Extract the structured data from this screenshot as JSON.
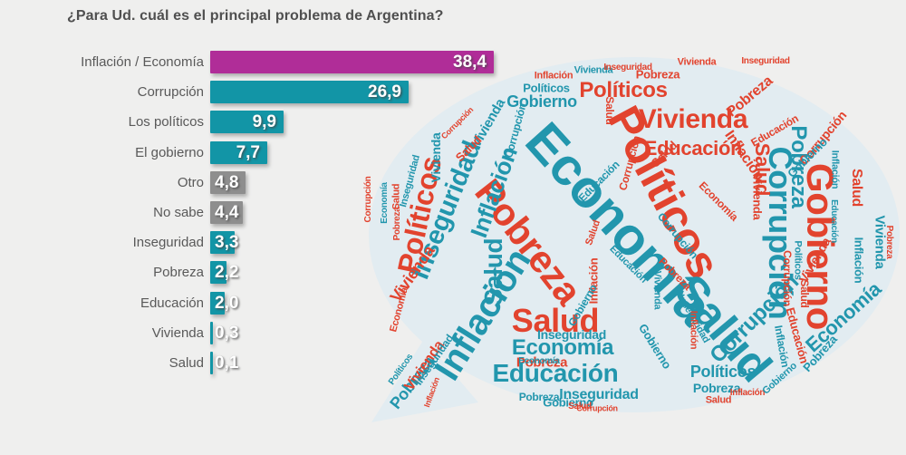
{
  "title": "¿Para Ud. cuál es el principal problema de Argentina?",
  "colors": {
    "background": "#efefee",
    "title_text": "#4f4f4f",
    "category_text": "#595959",
    "magenta": "#b02d98",
    "teal_bar": "#1295a6",
    "gray_bar": "#8e8e8e",
    "bubble_fill": "#e2ecf1",
    "cloud_teal": "#2296ad",
    "cloud_red": "#e2432e",
    "value_text": "#ffffff"
  },
  "chart_data": {
    "type": "bar",
    "orientation": "horizontal",
    "title": "¿Para Ud. cuál es el principal problema de Argentina?",
    "xlabel": "",
    "ylabel": "",
    "xlim": [
      0,
      40
    ],
    "grid": false,
    "legend": false,
    "categories": [
      "Inflación / Economía",
      "Corrupción",
      "Los políticos",
      "El gobierno",
      "Otro",
      "No sabe",
      "Inseguridad",
      "Pobreza",
      "Educación",
      "Vivienda",
      "Salud"
    ],
    "values": [
      38.4,
      26.9,
      9.9,
      7.7,
      4.8,
      4.4,
      3.3,
      2.2,
      2.0,
      0.3,
      0.1
    ],
    "value_labels": [
      "38,4",
      "26,9",
      "9,9",
      "7,7",
      "4,8",
      "4,4",
      "3,3",
      "2,2",
      "2,0",
      "0,3",
      "0,1"
    ],
    "bar_color_keys": [
      "magenta",
      "teal_bar",
      "teal_bar",
      "teal_bar",
      "gray_bar",
      "gray_bar",
      "teal_bar",
      "teal_bar",
      "teal_bar",
      "teal_bar",
      "teal_bar"
    ]
  },
  "word_cloud": {
    "shape": "speech-bubble",
    "palette": {
      "t": "#2296ad",
      "r": "#e2432e"
    },
    "words_format": [
      "text",
      "x",
      "y",
      "size",
      "color(t=teal,r=red)",
      "rotate_deg"
    ],
    "words": [
      [
        "Economía",
        290,
        195,
        58,
        "t",
        48
      ],
      [
        "Políticos",
        340,
        160,
        50,
        "r",
        62
      ],
      [
        "Salud",
        405,
        310,
        50,
        "t",
        50
      ],
      [
        "Pobreza",
        190,
        215,
        42,
        "r",
        52
      ],
      [
        "Inflación",
        140,
        295,
        40,
        "t",
        -58
      ],
      [
        "Gobierno",
        512,
        220,
        42,
        "r",
        90
      ],
      [
        "Corrupción",
        468,
        205,
        36,
        "t",
        90
      ],
      [
        "Políticos",
        70,
        185,
        32,
        "r",
        -78
      ],
      [
        "Inseguridad",
        100,
        180,
        29,
        "t",
        -68
      ],
      [
        "Salud",
        220,
        302,
        36,
        "r",
        0
      ],
      [
        "Vivienda",
        372,
        80,
        30,
        "r",
        0
      ],
      [
        "Educación",
        220,
        360,
        28,
        "t",
        0
      ],
      [
        "Inflación",
        152,
        160,
        26,
        "t",
        -70
      ],
      [
        "Salud",
        152,
        248,
        28,
        "t",
        -90
      ],
      [
        "Economía",
        228,
        332,
        24,
        "t",
        0
      ],
      [
        "Educación",
        372,
        112,
        22,
        "r",
        0
      ],
      [
        "Políticos",
        295,
        48,
        24,
        "r",
        0
      ],
      [
        "Corrupción",
        440,
        300,
        24,
        "t",
        -45
      ],
      [
        "Economía",
        538,
        298,
        22,
        "t",
        -42
      ],
      [
        "Pobreza",
        488,
        132,
        24,
        "t",
        90
      ],
      [
        "Salud",
        448,
        135,
        22,
        "r",
        90
      ],
      [
        "Gobierno",
        205,
        60,
        18,
        "t",
        0
      ],
      [
        "Vivienda",
        62,
        250,
        18,
        "r",
        -55
      ],
      [
        "Pobreza",
        62,
        370,
        18,
        "t",
        -52
      ],
      [
        "Inseguridad",
        268,
        384,
        16,
        "t",
        0
      ],
      [
        "Políticos",
        405,
        358,
        18,
        "t",
        0
      ],
      [
        "Vivienda",
        76,
        352,
        16,
        "r",
        -55
      ],
      [
        "Inflación",
        428,
        120,
        16,
        "r",
        55
      ],
      [
        "Pobreza",
        435,
        55,
        16,
        "r",
        -40
      ],
      [
        "Salud",
        552,
        155,
        16,
        "r",
        90
      ],
      [
        "Vivienda",
        578,
        215,
        15,
        "t",
        90
      ],
      [
        "Vivienda",
        146,
        84,
        15,
        "t",
        -60
      ],
      [
        "Pobreza",
        205,
        348,
        15,
        "r",
        0
      ],
      [
        "Inseguridad",
        238,
        317,
        14,
        "t",
        0
      ],
      [
        "Vivienda",
        506,
        235,
        14,
        "r",
        -60
      ],
      [
        "Corrupción",
        515,
        100,
        14,
        "r",
        -50
      ],
      [
        "Gobierno",
        498,
        122,
        13,
        "t",
        -45
      ],
      [
        "Inflación",
        555,
        235,
        13,
        "t",
        90
      ],
      [
        "Salud",
        124,
        112,
        13,
        "r",
        -45
      ],
      [
        "Políticos",
        210,
        45,
        13,
        "t",
        0
      ],
      [
        "Pobreza",
        333,
        30,
        13,
        "r",
        0
      ],
      [
        "Gobierno",
        234,
        392,
        13,
        "t",
        0
      ],
      [
        "Pobreza",
        512,
        338,
        13,
        "t",
        -48
      ],
      [
        "Educación",
        487,
        318,
        13,
        "r",
        75
      ],
      [
        "Vivienda",
        88,
        122,
        14,
        "t",
        -90
      ],
      [
        "Salud",
        495,
        272,
        12,
        "r",
        90
      ],
      [
        "Corrupción",
        476,
        255,
        12,
        "r",
        90
      ],
      [
        "Vivienda",
        443,
        165,
        13,
        "r",
        90
      ],
      [
        "Salud",
        340,
        118,
        13,
        "r",
        -45
      ],
      [
        "Corrupción",
        302,
        128,
        12,
        "r",
        -75
      ],
      [
        "Educación",
        268,
        148,
        12,
        "t",
        -45
      ],
      [
        "Pobreza",
        202,
        386,
        12,
        "t",
        0
      ],
      [
        "Inflación",
        218,
        32,
        11,
        "r",
        0
      ],
      [
        "Vivienda",
        262,
        26,
        11,
        "t",
        0
      ],
      [
        "Vivienda",
        376,
        17,
        11,
        "r",
        0
      ],
      [
        "Inseguridad",
        300,
        23,
        10,
        "r",
        0
      ],
      [
        "Inseguridad",
        452,
        16,
        10,
        "r",
        0
      ],
      [
        "Educación",
        462,
        92,
        12,
        "r",
        -30
      ],
      [
        "Inflación",
        528,
        135,
        11,
        "t",
        90
      ],
      [
        "Pobreza",
        588,
        215,
        10,
        "r",
        90
      ],
      [
        "Educación",
        527,
        192,
        10,
        "t",
        90
      ],
      [
        "Políticos",
        487,
        235,
        11,
        "t",
        90
      ],
      [
        "Inseguridad",
        60,
        148,
        11,
        "t",
        -75
      ],
      [
        "Salud",
        45,
        165,
        11,
        "r",
        -90
      ],
      [
        "Corrupción",
        14,
        168,
        10,
        "r",
        -90
      ],
      [
        "Economía",
        32,
        172,
        10,
        "t",
        -90
      ],
      [
        "Pobreza",
        46,
        195,
        10,
        "r",
        -90
      ],
      [
        "Economía",
        48,
        290,
        11,
        "r",
        -75
      ],
      [
        "Corrupción",
        176,
        92,
        12,
        "t",
        -75
      ],
      [
        "Salud",
        280,
        70,
        12,
        "r",
        90
      ],
      [
        "Corrupción",
        112,
        84,
        9,
        "r",
        -45
      ],
      [
        "Inseguridad",
        86,
        345,
        12,
        "t",
        -55
      ],
      [
        "Políticos",
        50,
        356,
        10,
        "t",
        -55
      ],
      [
        "Inflación",
        84,
        381,
        9,
        "r",
        -70
      ],
      [
        "Economía",
        202,
        347,
        10,
        "t",
        0
      ],
      [
        "Salud",
        247,
        397,
        10,
        "r",
        0
      ],
      [
        "Corrupción",
        266,
        399,
        9,
        "r",
        0
      ],
      [
        "Pobreza",
        398,
        376,
        14,
        "t",
        0
      ],
      [
        "Salud",
        400,
        390,
        11,
        "r",
        0
      ],
      [
        "Inflación",
        432,
        382,
        10,
        "r",
        0
      ],
      [
        "Gobierno",
        468,
        366,
        11,
        "t",
        -42
      ],
      [
        "Inflación",
        470,
        330,
        12,
        "t",
        80
      ],
      [
        "Inflación",
        262,
        258,
        13,
        "r",
        -90
      ],
      [
        "Gobierno",
        250,
        285,
        12,
        "t",
        -60
      ],
      [
        "Educación",
        300,
        240,
        11,
        "t",
        45
      ],
      [
        "Vivienda",
        332,
        268,
        11,
        "t",
        90
      ],
      [
        "Salud",
        262,
        205,
        11,
        "r",
        -70
      ],
      [
        "Pobreza",
        352,
        250,
        12,
        "r",
        45
      ],
      [
        "Inseguridad",
        372,
        300,
        11,
        "t",
        60
      ],
      [
        "Economía",
        400,
        170,
        12,
        "r",
        45
      ],
      [
        "Corrupción",
        355,
        208,
        12,
        "t",
        50
      ],
      [
        "Gobierno",
        330,
        330,
        13,
        "t",
        58
      ],
      [
        "Inflación",
        372,
        312,
        11,
        "r",
        90
      ]
    ]
  }
}
